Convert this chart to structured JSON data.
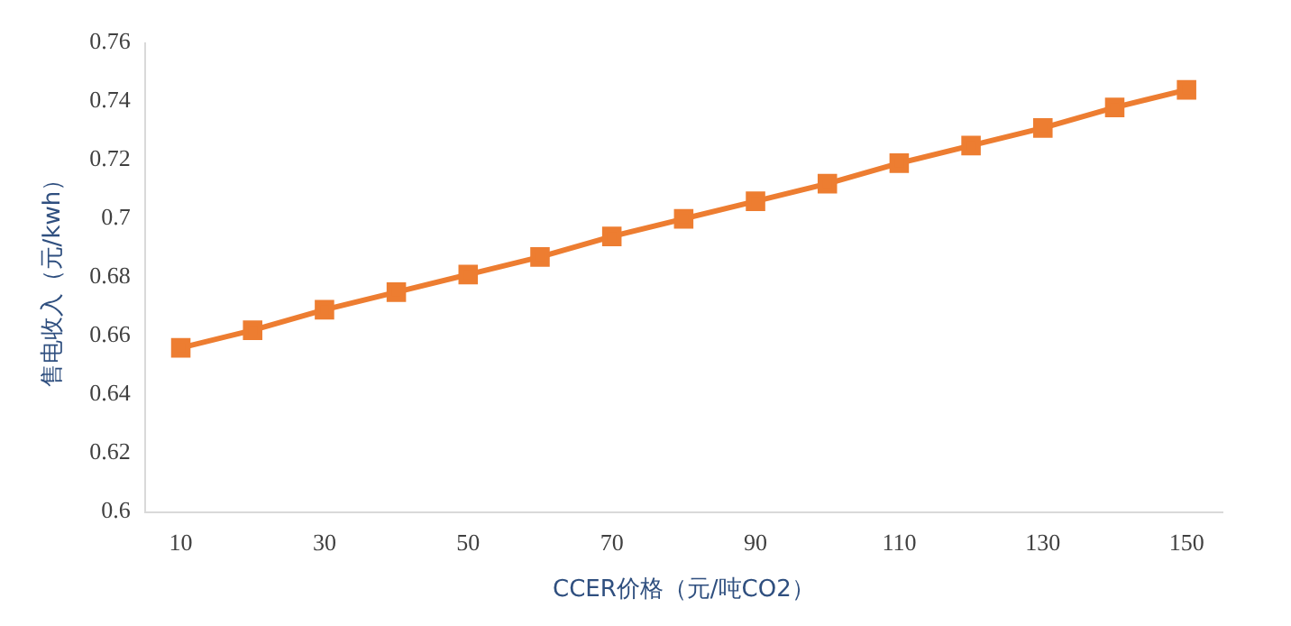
{
  "chart_data": {
    "type": "line",
    "xlabel": "CCER价格（元/吨CO2）",
    "ylabel": "售电收入（元/kwh）",
    "categories": [
      "10",
      null,
      "30",
      null,
      "50",
      null,
      "70",
      null,
      "90",
      null,
      "110",
      null,
      "130",
      null,
      "150"
    ],
    "series": [
      {
        "color": "#ed7d31",
        "values": [
          0.656,
          0.662,
          0.669,
          0.675,
          0.681,
          0.687,
          0.694,
          0.7,
          0.706,
          0.712,
          0.719,
          0.725,
          0.731,
          0.738,
          0.744
        ]
      }
    ],
    "ylim": [
      0.6,
      0.76
    ],
    "yticks": [
      0.6,
      0.62,
      0.64,
      0.66,
      0.68,
      0.7,
      0.72,
      0.74,
      0.76
    ],
    "grid": false,
    "legend": false,
    "marker": "square",
    "line_style": "solid"
  }
}
